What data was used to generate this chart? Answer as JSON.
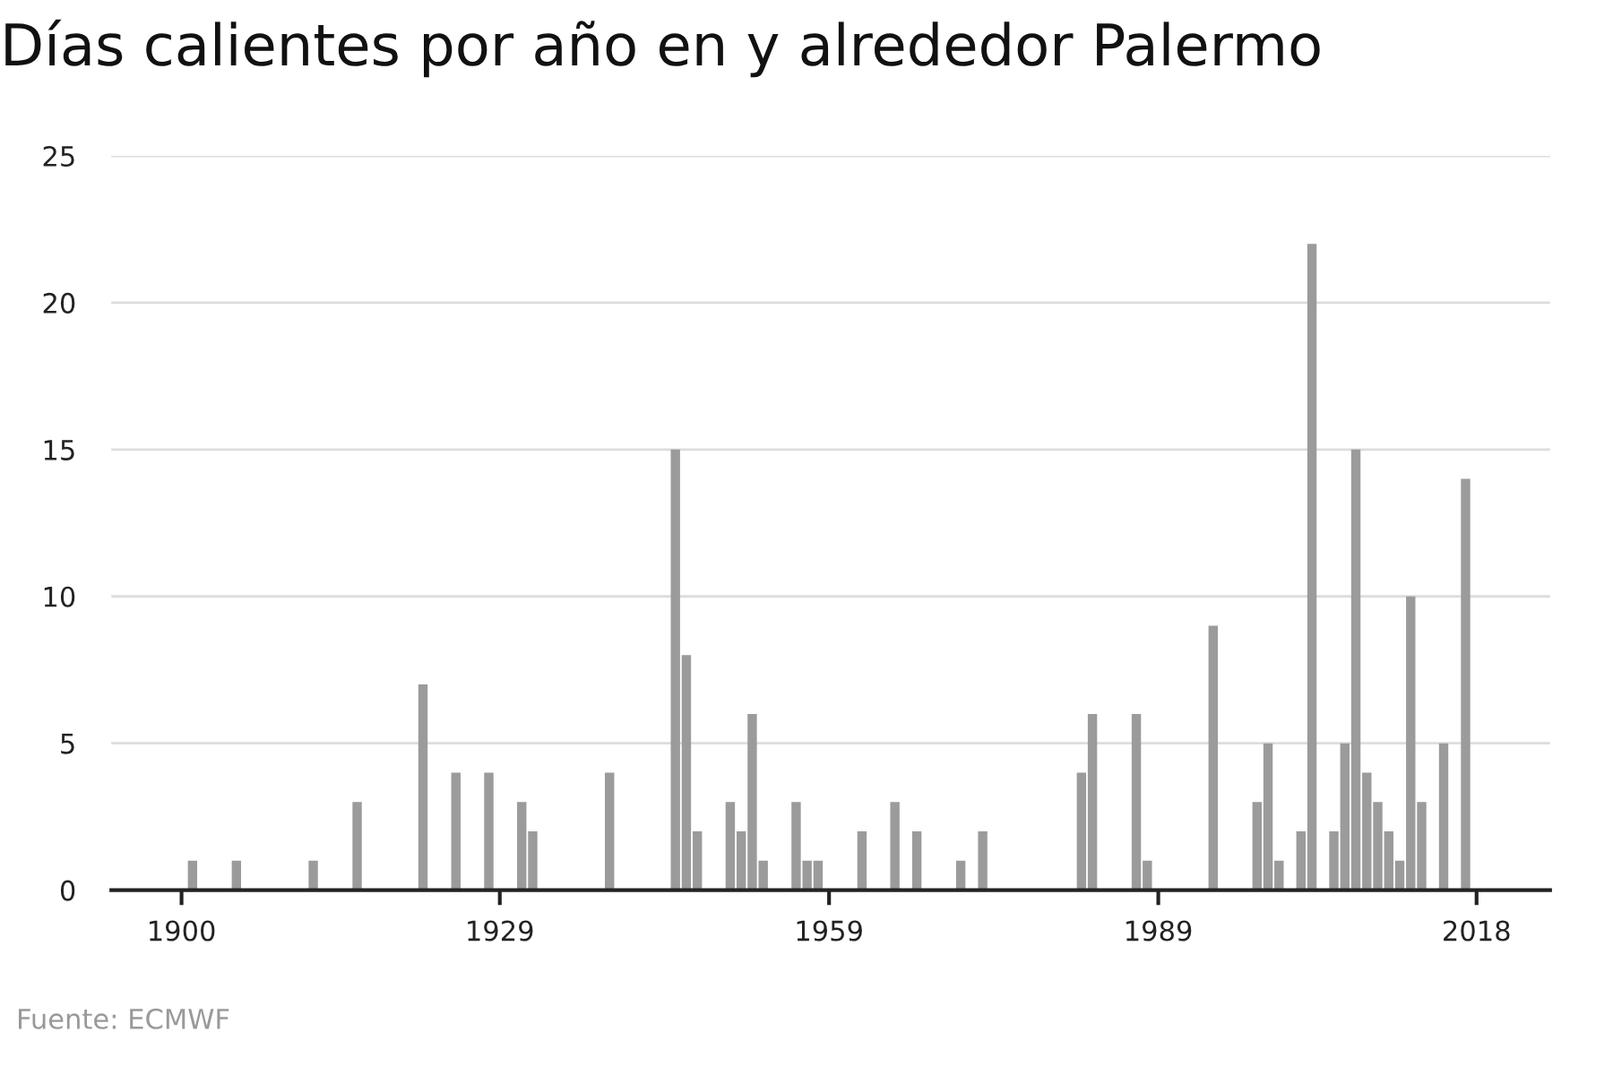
{
  "chart_data": {
    "type": "bar",
    "title": "Días calientes por año en y alrededor Palermo",
    "x": [
      1901,
      1905,
      1912,
      1916,
      1922,
      1925,
      1928,
      1931,
      1932,
      1939,
      1945,
      1946,
      1947,
      1950,
      1951,
      1952,
      1953,
      1956,
      1957,
      1958,
      1962,
      1965,
      1967,
      1971,
      1973,
      1982,
      1983,
      1987,
      1988,
      1994,
      1998,
      1999,
      2000,
      2002,
      2003,
      2005,
      2006,
      2007,
      2008,
      2009,
      2010,
      2011,
      2012,
      2013,
      2015,
      2017
    ],
    "values": [
      1,
      1,
      1,
      3,
      7,
      4,
      4,
      3,
      2,
      4,
      15,
      8,
      2,
      3,
      2,
      6,
      1,
      3,
      1,
      1,
      2,
      3,
      2,
      1,
      2,
      4,
      6,
      6,
      1,
      9,
      3,
      5,
      1,
      2,
      22,
      2,
      5,
      15,
      4,
      3,
      2,
      1,
      10,
      3,
      5,
      14
    ],
    "color": "#9b9b9b",
    "xlim": [
      1893.6,
      2024.7
    ],
    "xticks": [
      1900,
      1929,
      1959,
      1989,
      2018
    ],
    "ylim": [
      0,
      25
    ],
    "yticks": [
      0,
      5,
      10,
      15,
      20,
      25
    ],
    "grid": "y",
    "annotations": [
      "Fuente: ECMWF"
    ]
  }
}
